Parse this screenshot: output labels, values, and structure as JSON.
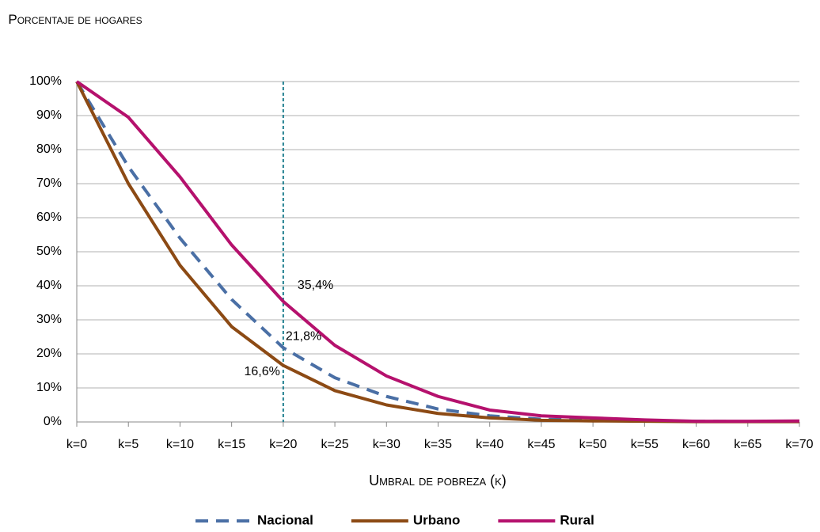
{
  "chart_data": {
    "type": "line",
    "y_label": "Porcentaje de hogares",
    "x_label": "Umbral de pobreza (k)",
    "categories": [
      "k=0",
      "k=5",
      "k=10",
      "k=15",
      "k=20",
      "k=25",
      "k=30",
      "k=35",
      "k=40",
      "k=45",
      "k=50",
      "k=55",
      "k=60",
      "k=65",
      "k=70"
    ],
    "series": [
      {
        "name": "Nacional",
        "color": "#4a6fa5",
        "dashed": true,
        "values": [
          100,
          75,
          54,
          36,
          21.8,
          13,
          7.5,
          3.8,
          1.8,
          0.8,
          0.5,
          0.3,
          0.2,
          0.1,
          0.2
        ],
        "value_labels": [
          null,
          null,
          null,
          null,
          "21,8%",
          null,
          null,
          null,
          null,
          null,
          null,
          null,
          null,
          null,
          null
        ]
      },
      {
        "name": "Urbano",
        "color": "#8c4a14",
        "dashed": false,
        "values": [
          100,
          70,
          46,
          28,
          16.6,
          9.2,
          5,
          2.5,
          1.2,
          0.5,
          0.3,
          0.2,
          0.1,
          0.1,
          0.1
        ],
        "value_labels": [
          null,
          null,
          null,
          null,
          "16,6%",
          null,
          null,
          null,
          null,
          null,
          null,
          null,
          null,
          null,
          null
        ]
      },
      {
        "name": "Rural",
        "color": "#b5116d",
        "dashed": false,
        "values": [
          100,
          89.5,
          72,
          52,
          35.4,
          22.5,
          13.5,
          7.5,
          3.5,
          1.8,
          1.2,
          0.6,
          0.2,
          0.2,
          0.3
        ],
        "value_labels": [
          null,
          null,
          null,
          null,
          "35,4%",
          null,
          null,
          null,
          null,
          null,
          null,
          null,
          null,
          null,
          null
        ]
      }
    ],
    "ylim": [
      0,
      100
    ],
    "yticks": [
      {
        "value": 0,
        "label": "0%"
      },
      {
        "value": 10,
        "label": "10%"
      },
      {
        "value": 20,
        "label": "20%"
      },
      {
        "value": 30,
        "label": "30%"
      },
      {
        "value": 40,
        "label": "40%"
      },
      {
        "value": 50,
        "label": "50%"
      },
      {
        "value": 60,
        "label": "60%"
      },
      {
        "value": 70,
        "label": "70%"
      },
      {
        "value": 80,
        "label": "80%"
      },
      {
        "value": 90,
        "label": "90%"
      },
      {
        "value": 100,
        "label": "100%"
      }
    ],
    "grid": true,
    "reference_category": "k=20",
    "reference_color": "#1f7f8f",
    "legend": "bottom"
  }
}
